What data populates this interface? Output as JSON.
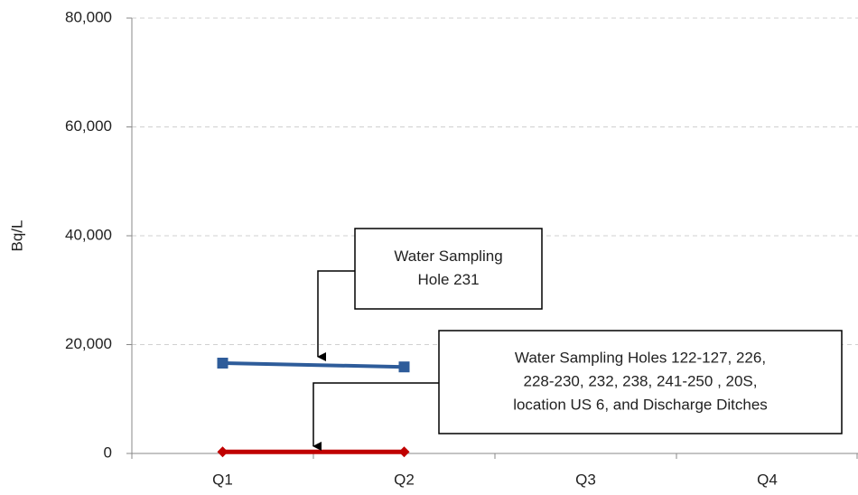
{
  "chart_data": {
    "type": "line",
    "y_label": "Bq/L",
    "categories": [
      "Q1",
      "Q2",
      "Q3",
      "Q4"
    ],
    "series": [
      {
        "color": "#2e5c9a",
        "values": [
          16600,
          15900,
          null,
          null
        ]
      },
      {
        "color": "#c00000",
        "values": [
          300,
          300,
          null,
          null
        ]
      }
    ],
    "ylim": [
      0,
      80000
    ],
    "yticks": [
      0,
      {
        "value": 20000,
        "label": "20,000"
      },
      {
        "value": 40000,
        "label": "40,000"
      },
      {
        "value": 60000,
        "label": "60,000"
      },
      {
        "value": 80000,
        "label": "80,000"
      }
    ],
    "grid": true,
    "annotations": [
      {
        "lines": [
          "Water Sampling",
          "Hole 231"
        ]
      },
      {
        "lines": [
          "Water Sampling Holes 122-127, 226,",
          "228-230, 232, 238, 241-250 , 20S,",
          "location US 6, and Discharge Ditches"
        ]
      }
    ]
  }
}
